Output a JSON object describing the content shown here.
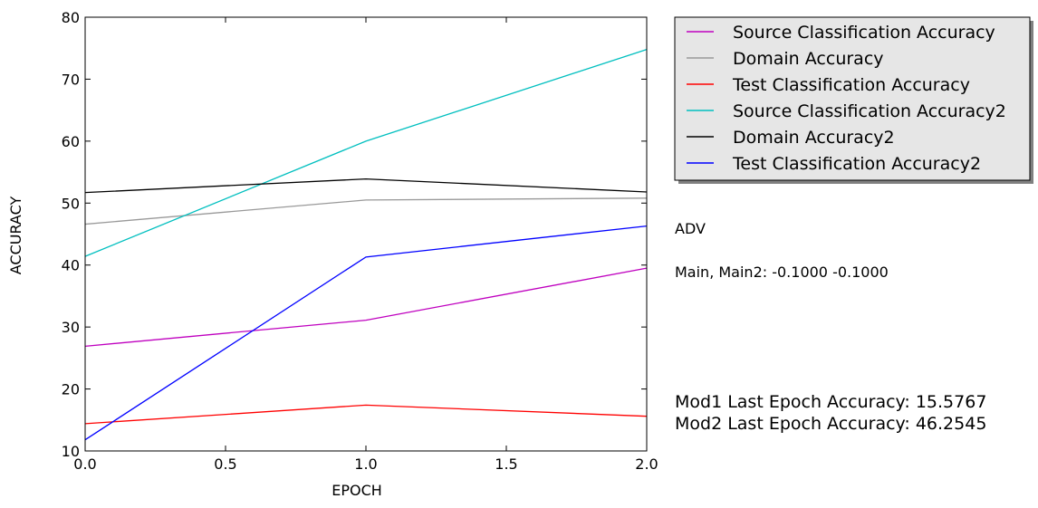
{
  "chart_data": {
    "type": "line",
    "xlabel": "EPOCH",
    "ylabel": "ACCURACY",
    "xlim": [
      0.0,
      2.0
    ],
    "ylim": [
      10,
      80
    ],
    "xticks": [
      "0.0",
      "0.5",
      "1.0",
      "1.5",
      "2.0"
    ],
    "yticks": [
      "10",
      "20",
      "30",
      "40",
      "50",
      "60",
      "70",
      "80"
    ],
    "x": [
      0,
      1,
      2
    ],
    "grid": false,
    "legend_position": "outside-top-right",
    "series": [
      {
        "name": "Source Classification Accuracy",
        "color": "#bf00bf",
        "values": [
          26.9,
          31.1,
          39.5
        ]
      },
      {
        "name": "Domain Accuracy",
        "color": "#999999",
        "values": [
          46.6,
          50.5,
          50.8
        ]
      },
      {
        "name": "Test Classification Accuracy",
        "color": "#ff0000",
        "values": [
          14.4,
          17.4,
          15.6
        ]
      },
      {
        "name": "Source Classification Accuracy2",
        "color": "#00bfbf",
        "values": [
          41.4,
          60.0,
          74.8
        ]
      },
      {
        "name": "Domain Accuracy2",
        "color": "#000000",
        "values": [
          51.7,
          53.9,
          51.8
        ]
      },
      {
        "name": "Test Classification Accuracy2",
        "color": "#0000ff",
        "values": [
          11.8,
          41.3,
          46.3
        ]
      }
    ]
  },
  "annotations": {
    "method": "ADV",
    "params": "Main, Main2: -0.1000 -0.1000",
    "mod1": "Mod1 Last Epoch Accuracy: 15.5767",
    "mod2": "Mod2 Last Epoch Accuracy: 46.2545"
  }
}
